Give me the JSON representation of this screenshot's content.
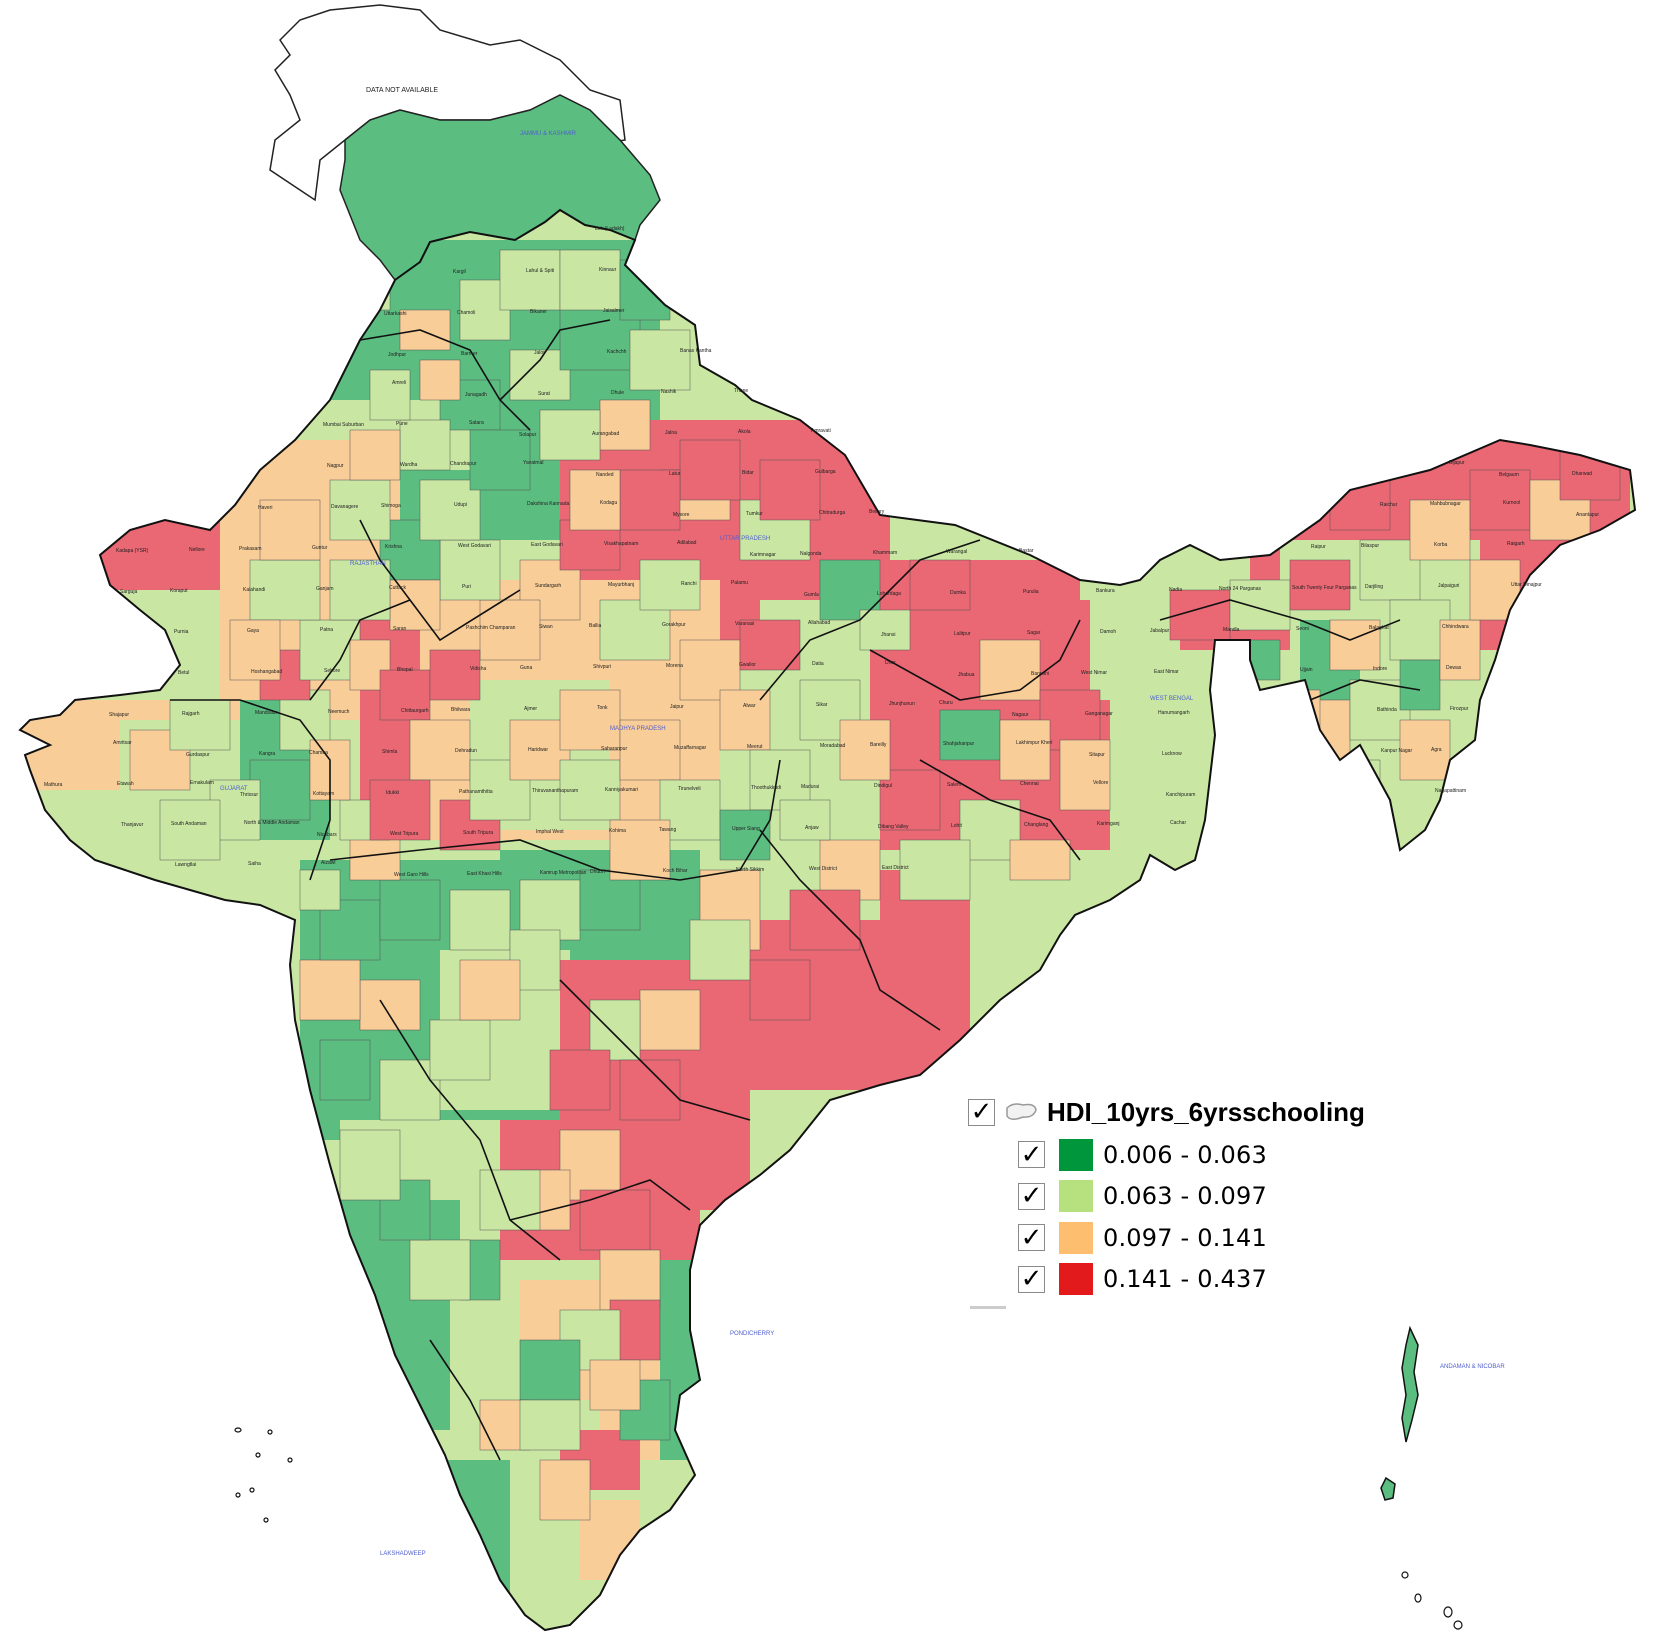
{
  "map": {
    "no_data_label": "DATA NOT AVAILABLE",
    "state_labels": [
      "JAMMU & KASHMIR",
      "UTTAR PRADESH",
      "RAJASTHAN",
      "MADHYA PRADESH",
      "GUJARAT",
      "WEST BENGAL",
      "PONDICHERRY",
      "LAKSHADWEEP",
      "ANDAMAN & NICOBAR"
    ],
    "district_labels": [
      "Leh (Ladakh)",
      "Kargil",
      "Lahul & Spiti",
      "Kinnaur",
      "Uttarkashi",
      "Chamoli",
      "Bikaner",
      "Jaisalmer",
      "Jodhpur",
      "Barmer",
      "Jalor",
      "Kachchh",
      "Banas Kantha",
      "Amreli",
      "Junagadh",
      "Surat",
      "Dhule",
      "Nashik",
      "Thane",
      "Mumbai Suburban",
      "Pune",
      "Satara",
      "Solapur",
      "Aurangabad",
      "Jalna",
      "Akola",
      "Amravati",
      "Nagpur",
      "Wardha",
      "Chandrapur",
      "Yavatmal",
      "Nanded",
      "Latur",
      "Bidar",
      "Gulbarga",
      "Bijapur",
      "Belgaum",
      "Dharwad",
      "Haveri",
      "Davanagere",
      "Shimoga",
      "Udupi",
      "Dakshina Kannada",
      "Kodagu",
      "Mysore",
      "Tumkur",
      "Chitradurga",
      "Bellary",
      "Raichur",
      "Mahbubnagar",
      "Kurnool",
      "Anantapur",
      "Kadapa (YSR)",
      "Nellore",
      "Prakasam",
      "Guntur",
      "Krishna",
      "West Godavari",
      "East Godavari",
      "Visakhapatnam",
      "Adilabad",
      "Karimnagar",
      "Nalgonda",
      "Khammam",
      "Warangal",
      "Bastar",
      "Raipur",
      "Bilaspur",
      "Korba",
      "Raigarh",
      "Sarguja",
      "Koraput",
      "Kalahandi",
      "Ganjam",
      "Cuttack",
      "Puri",
      "Sundargarh",
      "Mayurbhanj",
      "Ranchi",
      "Palamu",
      "Gumla",
      "Lohardaga",
      "Dumka",
      "Purulia",
      "Bankura",
      "Nadia",
      "North 24 Parganas",
      "South Twenty Four Parganas",
      "Darjiling",
      "Jalpaiguri",
      "Uttar Dinajpur",
      "Purnia",
      "Gaya",
      "Patna",
      "Saran",
      "Pashchim Champaran",
      "Siwan",
      "Ballia",
      "Gorakhpur",
      "Varanasi",
      "Allahabad",
      "Jhansi",
      "Lalitpur",
      "Sagar",
      "Damoh",
      "Jabalpur",
      "Mandla",
      "Seoni",
      "Balaghat",
      "Chhindwara",
      "Betul",
      "Hoshangabad",
      "Sehore",
      "Bhopal",
      "Vidisha",
      "Guna",
      "Shivpuri",
      "Morena",
      "Gwalior",
      "Datia",
      "Dhar",
      "Jhabua",
      "Barwani",
      "West Nimar",
      "East Nimar",
      "Ujjain",
      "Indore",
      "Dewas",
      "Shajapur",
      "Rajgarh",
      "Mandsaur",
      "Neemuch",
      "Chittaurgarh",
      "Bhilwara",
      "Ajmer",
      "Tonk",
      "Jaipur",
      "Alwar",
      "Sikar",
      "Jhunjhunun",
      "Churu",
      "Nagaur",
      "Ganganagar",
      "Hanumangarh",
      "Bathinda",
      "Firozpur",
      "Amritsar",
      "Gurdaspur",
      "Kangra",
      "Chamba",
      "Shimla",
      "Dehradun",
      "Haridwar",
      "Saharanpur",
      "Muzaffarnagar",
      "Meerut",
      "Moradabad",
      "Bareilly",
      "Shahjahanpur",
      "Lakhimpur Kheri",
      "Sitapur",
      "Lucknow",
      "Kanpur Nagar",
      "Agra",
      "Mathura",
      "Etawah",
      "Ernakulam",
      "Thrissur",
      "Kottayam",
      "Idukki",
      "Pathanamthitta",
      "Thiruvananthapuram",
      "Kanniyakumari",
      "Tirunelveli",
      "Thoothukkudi",
      "Madurai",
      "Dindigul",
      "Salem",
      "Chennai",
      "Vellore",
      "Kanchipuram",
      "Nagapattinam",
      "Thanjavur",
      "South Andaman",
      "North & Middle Andaman",
      "Nicobars",
      "West Tripura",
      "South Tripura",
      "Imphal West",
      "Kohima",
      "Tawang",
      "Upper Siang",
      "Anjaw",
      "Dibang Valley",
      "Lohit",
      "Changlang",
      "Karimganj",
      "Cachar",
      "Lawngtlai",
      "Saiha",
      "Aizawl",
      "West Garo Hills",
      "East Khasi Hills",
      "Kamrup Metropolitan",
      "Dhubri",
      "Koch Bihar",
      "North Sikkim",
      "West District",
      "East District"
    ]
  },
  "legend": {
    "layer_name": "HDI_10yrs_6yrsschooling",
    "classes": [
      {
        "range": "0.006 - 0.063",
        "color": "#00963c",
        "checked": true
      },
      {
        "range": "0.063 - 0.097",
        "color": "#b7e07e",
        "checked": true
      },
      {
        "range": "0.097 - 0.141",
        "color": "#fdbf6f",
        "checked": true
      },
      {
        "range": "0.141 - 0.437",
        "color": "#e31a1c",
        "checked": true
      }
    ]
  },
  "map_colors": {
    "green": "#5bbd80",
    "light_green": "#c9e7a3",
    "orange": "#f9cd98",
    "red": "#ea6774",
    "outline": "#555555",
    "no_data_fill": "#ffffff"
  }
}
